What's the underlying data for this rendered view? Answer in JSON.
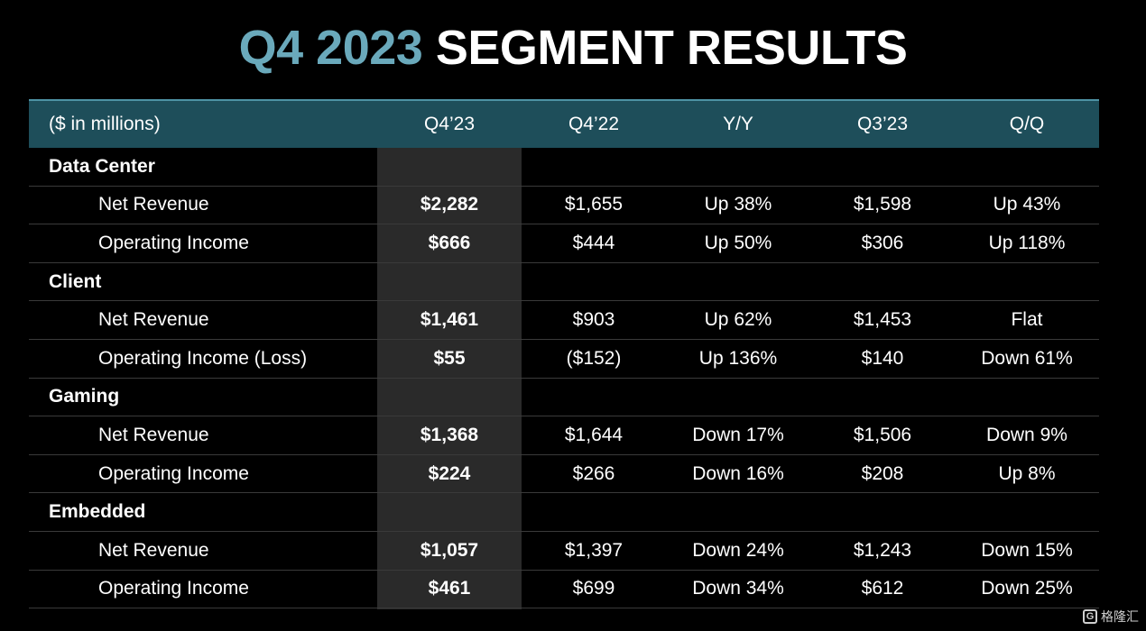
{
  "title": {
    "accent": "Q4 2023",
    "main": "SEGMENT RESULTS"
  },
  "header": {
    "label": "($ in millions)",
    "cols": [
      "Q4’23",
      "Q4’22",
      "Y/Y",
      "Q3’23",
      "Q/Q"
    ]
  },
  "rows": [
    {
      "type": "section",
      "label": "Data Center"
    },
    {
      "type": "item",
      "label": "Net Revenue",
      "values": [
        "$2,282",
        "$1,655",
        "Up 38%",
        "$1,598",
        "Up 43%"
      ]
    },
    {
      "type": "item",
      "label": "Operating Income",
      "values": [
        "$666",
        "$444",
        "Up 50%",
        "$306",
        "Up 118%"
      ]
    },
    {
      "type": "section",
      "label": "Client"
    },
    {
      "type": "item",
      "label": "Net Revenue",
      "values": [
        "$1,461",
        "$903",
        "Up 62%",
        "$1,453",
        "Flat"
      ]
    },
    {
      "type": "item",
      "label": "Operating Income (Loss)",
      "values": [
        "$55",
        "($152)",
        "Up 136%",
        "$140",
        "Down 61%"
      ]
    },
    {
      "type": "section",
      "label": "Gaming"
    },
    {
      "type": "item",
      "label": "Net Revenue",
      "values": [
        "$1,368",
        "$1,644",
        "Down 17%",
        "$1,506",
        "Down 9%"
      ]
    },
    {
      "type": "item",
      "label": "Operating Income",
      "values": [
        "$224",
        "$266",
        "Down 16%",
        "$208",
        "Up 8%"
      ]
    },
    {
      "type": "section",
      "label": "Embedded"
    },
    {
      "type": "item",
      "label": "Net Revenue",
      "values": [
        "$1,057",
        "$1,397",
        "Down 24%",
        "$1,243",
        "Down 15%"
      ]
    },
    {
      "type": "item",
      "label": "Operating Income",
      "values": [
        "$461",
        "$699",
        "Down 34%",
        "$612",
        "Down 25%"
      ]
    }
  ],
  "watermark": {
    "logo": "G",
    "text": "格隆汇"
  },
  "colors": {
    "accent": "#6aa9bb",
    "header_bg": "#1e4e5a",
    "highlight_col": "#2a2a2a"
  }
}
